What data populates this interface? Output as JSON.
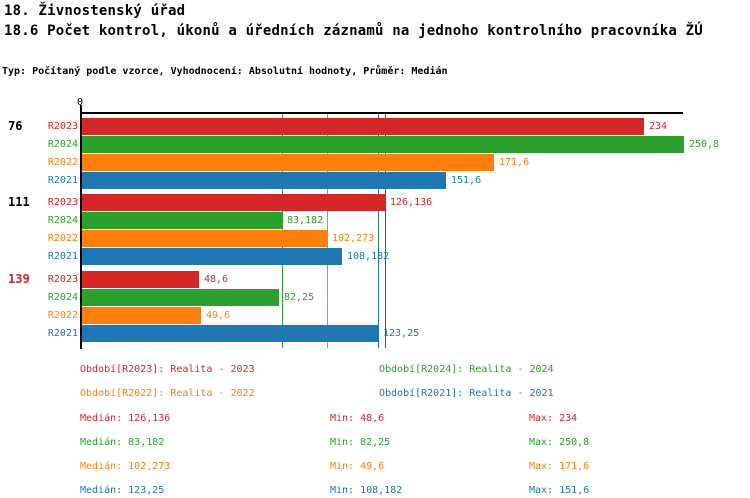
{
  "header": {
    "title": "18. Živnostenský úřad",
    "subtitle": "18.6 Počet kontrol, úkonů a úředních záznamů na jednoho kontrolního pracovníka ŽÚ",
    "type_line": "Typ: Počítaný podle vzorce, Vyhodnocení: Absolutní hodnoty, Průměr: Medián"
  },
  "palette": {
    "R2023": "#d62728",
    "R2024": "#2ca02c",
    "R2022": "#ff7f0e",
    "R2021": "#1f77b4",
    "axis": "#000000",
    "group_label_default": "#000000",
    "group_label_highlight": "#d62728"
  },
  "chart_data": {
    "type": "bar",
    "orientation": "horizontal",
    "origin_label": "0",
    "xlim": [
      0,
      251
    ],
    "grid": false,
    "series_order": [
      "R2023",
      "R2024",
      "R2022",
      "R2021"
    ],
    "groups": [
      {
        "label": "76",
        "highlight": false,
        "bars": [
          {
            "series": "R2023",
            "value": 234,
            "label": "234"
          },
          {
            "series": "R2024",
            "value": 250.8,
            "label": "250,8"
          },
          {
            "series": "R2022",
            "value": 171.6,
            "label": "171,6"
          },
          {
            "series": "R2021",
            "value": 151.6,
            "label": "151,6"
          }
        ]
      },
      {
        "label": "111",
        "highlight": false,
        "bars": [
          {
            "series": "R2023",
            "value": 126.136,
            "label": "126,136"
          },
          {
            "series": "R2024",
            "value": 83.182,
            "label": "83,182"
          },
          {
            "series": "R2022",
            "value": 102.273,
            "label": "102,273"
          },
          {
            "series": "R2021",
            "value": 108.182,
            "label": "108,182"
          }
        ]
      },
      {
        "label": "139",
        "highlight": true,
        "bars": [
          {
            "series": "R2023",
            "value": 48.6,
            "label": "48,6"
          },
          {
            "series": "R2024",
            "value": 82.25,
            "label": "82,25"
          },
          {
            "series": "R2022",
            "value": 49.6,
            "label": "49,6"
          },
          {
            "series": "R2021",
            "value": 123.25,
            "label": "123,25"
          }
        ]
      }
    ],
    "median_lines": [
      {
        "series": "R2023",
        "value": 126.136
      },
      {
        "series": "R2024",
        "value": 83.182
      },
      {
        "series": "R2022",
        "value": 102.273
      },
      {
        "series": "R2021",
        "value": 123.25
      }
    ]
  },
  "legend": {
    "items": [
      {
        "series": "R2023",
        "label": "Období[R2023]: Realita - 2023"
      },
      {
        "series": "R2024",
        "label": "Období[R2024]: Realita - 2024"
      },
      {
        "series": "R2022",
        "label": "Období[R2022]: Realita - 2022"
      },
      {
        "series": "R2021",
        "label": "Období[R2021]: Realita - 2021"
      }
    ]
  },
  "stats": {
    "rows": [
      {
        "series": "R2023",
        "median": "Medián: 126,136",
        "min": "Min: 48,6",
        "max": "Max: 234"
      },
      {
        "series": "R2024",
        "median": "Medián: 83,182",
        "min": "Min: 82,25",
        "max": "Max: 250,8"
      },
      {
        "series": "R2022",
        "median": "Medián: 102,273",
        "min": "Min: 49,6",
        "max": "Max: 171,6"
      },
      {
        "series": "R2021",
        "median": "Medián: 123,25",
        "min": "Min: 108,182",
        "max": "Max: 151,6"
      }
    ]
  }
}
